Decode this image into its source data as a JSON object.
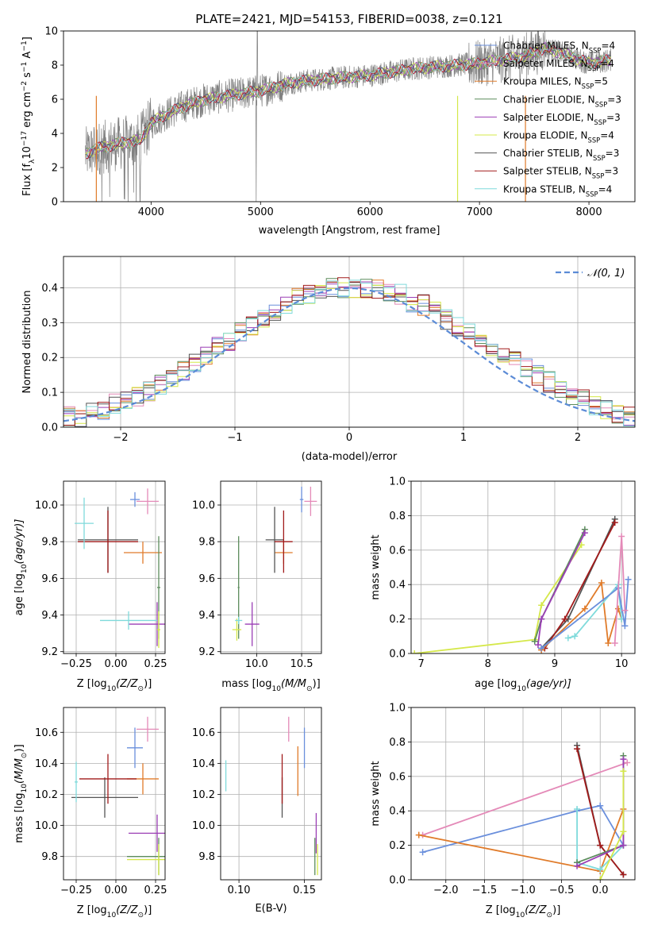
{
  "figure": {
    "title": "PLATE=2421, MJD=54153, FIBERID=0038, z=0.121"
  },
  "colors": {
    "Chabrier MILES": "#6a8fdc",
    "Salpeter MILES": "#e48ab8",
    "Kroupa MILES": "#e07b2a",
    "Chabrier ELODIE": "#5c8c5c",
    "Salpeter ELODIE": "#9b3fb5",
    "Kroupa ELODIE": "#d5e84a",
    "Chabrier STELIB": "#555555",
    "Salpeter STELIB": "#a11a1a",
    "Kroupa STELIB": "#7fdadb",
    "data": "#808080",
    "normal": "#5b8bd6"
  },
  "chart_data": [
    {
      "id": "spectrum",
      "type": "line",
      "xlabel": "wavelength [Angstrom, rest frame]",
      "ylabel_main": "Flux [f",
      "ylabel_sub": "λ",
      "ylabel_rest": "10",
      "ylabel_exp1": "−17",
      "ylabel_mid": " erg cm",
      "ylabel_exp2": "−2",
      "ylabel_mid2": " s",
      "ylabel_exp3": "−1",
      "ylabel_mid3": " A",
      "ylabel_exp4": "−1",
      "ylabel_end": "]",
      "xlim": [
        3200,
        8420
      ],
      "ylim": [
        0,
        10
      ],
      "xticks": [
        4000,
        5000,
        6000,
        7000,
        8000
      ],
      "yticks": [
        0,
        2,
        4,
        6,
        8,
        10
      ],
      "grid": false,
      "legend_position": "top-right",
      "continuum_x": [
        3400,
        3500,
        3700,
        3900,
        4000,
        4100,
        4300,
        4500,
        4700,
        5000,
        5300,
        5600,
        6000,
        6400,
        6800,
        7000,
        7200,
        7400,
        7600,
        7800,
        8000,
        8200
      ],
      "continuum_y": [
        2.8,
        3.1,
        3.4,
        3.6,
        4.6,
        5.0,
        5.6,
        6.0,
        6.2,
        6.5,
        7.0,
        7.2,
        7.4,
        7.8,
        8.0,
        8.1,
        8.3,
        8.5,
        9.0,
        8.6,
        8.1,
        8.3
      ],
      "legend": [
        {
          "name": "Chabrier MILES",
          "n": "4"
        },
        {
          "name": "Salpeter MILES",
          "n": "4"
        },
        {
          "name": "Kroupa MILES",
          "n": "5"
        },
        {
          "name": "Chabrier ELODIE",
          "n": "3"
        },
        {
          "name": "Salpeter ELODIE",
          "n": "3"
        },
        {
          "name": "Kroupa ELODIE",
          "n": "4"
        },
        {
          "name": "Chabrier STELIB",
          "n": "3"
        },
        {
          "name": "Salpeter STELIB",
          "n": "3"
        },
        {
          "name": "Kroupa STELIB",
          "n": "4"
        }
      ],
      "legend_n_prefix": ", N",
      "legend_n_sub": "SSP",
      "legend_n_eq": "="
    },
    {
      "id": "residuals",
      "type": "line",
      "xlabel": "(data-model)/error",
      "ylabel": "Normed distribution",
      "xlim": [
        -2.5,
        2.5
      ],
      "ylim": [
        0,
        0.49
      ],
      "xticks": [
        -2,
        -1,
        0,
        1,
        2
      ],
      "xticklabels": [
        "−2",
        "−1",
        "0",
        "1",
        "2"
      ],
      "yticks": [
        0.0,
        0.1,
        0.2,
        0.3,
        0.4
      ],
      "yticklabels": [
        "0.0",
        "0.1",
        "0.2",
        "0.3",
        "0.4"
      ],
      "grid": true,
      "legend_label": "𝒩(0, 1)",
      "legend_position": "top-right",
      "bin_width": 0.1,
      "bin_start": -2.5,
      "hist_base": [
        0.03,
        0.03,
        0.04,
        0.05,
        0.07,
        0.08,
        0.09,
        0.1,
        0.12,
        0.14,
        0.16,
        0.18,
        0.21,
        0.23,
        0.25,
        0.27,
        0.29,
        0.31,
        0.33,
        0.35,
        0.37,
        0.38,
        0.39,
        0.4,
        0.4,
        0.4,
        0.4,
        0.4,
        0.39,
        0.38,
        0.36,
        0.35,
        0.33,
        0.31,
        0.29,
        0.27,
        0.25,
        0.23,
        0.21,
        0.19,
        0.17,
        0.15,
        0.13,
        0.11,
        0.09,
        0.08,
        0.06,
        0.05,
        0.04,
        0.03
      ]
    },
    {
      "id": "age_vs_Z",
      "type": "scatter",
      "xlabel": "Z [log",
      "xlabel_sub": "10",
      "xlabel_rest": "(Z/Z",
      "xlabel_sub2": "⊙",
      "xlabel_end": ")]",
      "ylabel": "age  [log",
      "ylabel_sub": "10",
      "ylabel_rest": "(age/yr)]",
      "xlim": [
        -0.33,
        0.31
      ],
      "ylim": [
        9.19,
        10.13
      ],
      "xticks": [
        -0.25,
        0.0,
        0.25
      ],
      "xticklabels": [
        "−0.25",
        "0.00",
        "0.25"
      ],
      "yticks": [
        9.2,
        9.4,
        9.6,
        9.8,
        10.0
      ],
      "yticklabels": [
        "9.2",
        "9.4",
        "9.6",
        "9.8",
        "10.0"
      ],
      "grid": true,
      "points": [
        {
          "model": "Chabrier MILES",
          "x": 0.12,
          "y": 10.03,
          "xerr": 0.03,
          "yerr": 0.04
        },
        {
          "model": "Salpeter MILES",
          "x": 0.2,
          "y": 10.02,
          "xerr": 0.07,
          "yerr": 0.07
        },
        {
          "model": "Kroupa MILES",
          "x": 0.17,
          "y": 9.74,
          "xerr": 0.12,
          "yerr": 0.06
        },
        {
          "model": "Chabrier ELODIE",
          "x": 0.27,
          "y": 9.55,
          "xerr": 0.01,
          "yerr": 0.28
        },
        {
          "model": "Salpeter ELODIE",
          "x": 0.26,
          "y": 9.35,
          "xerr": 0.18,
          "yerr": 0.12
        },
        {
          "model": "Kroupa ELODIE",
          "x": 0.27,
          "y": 9.32,
          "xerr": 0.01,
          "yerr": 0.1
        },
        {
          "model": "Chabrier STELIB",
          "x": -0.05,
          "y": 9.81,
          "xerr": 0.19,
          "yerr": 0.18
        },
        {
          "model": "Salpeter STELIB",
          "x": -0.05,
          "y": 9.8,
          "xerr": 0.19,
          "yerr": 0.17
        },
        {
          "model": "Kroupa STELIB",
          "x": -0.2,
          "y": 9.9,
          "xerr": 0.06,
          "yerr": 0.14
        },
        {
          "model": "Kroupa STELIB",
          "x": 0.08,
          "y": 9.37,
          "xerr": 0.18,
          "yerr": 0.05
        }
      ]
    },
    {
      "id": "age_vs_mass",
      "type": "scatter",
      "xlabel": "mass [log",
      "xlabel_sub": "10",
      "xlabel_rest": "(M/M",
      "xlabel_sub2": "⊙",
      "xlabel_end": ")]",
      "xlim": [
        9.6,
        10.72
      ],
      "ylim": [
        9.19,
        10.13
      ],
      "xticks": [
        10.0,
        10.5
      ],
      "xticklabels": [
        "10.0",
        "10.5"
      ],
      "yticks": [
        9.2,
        9.4,
        9.6,
        9.8,
        10.0
      ],
      "yticklabels": [
        "9.2",
        "9.4",
        "9.6",
        "9.8",
        "10.0"
      ],
      "grid": true,
      "points": [
        {
          "model": "Chabrier MILES",
          "x": 10.5,
          "y": 10.03,
          "xerr": 0.02,
          "yerr": 0.07
        },
        {
          "model": "Salpeter MILES",
          "x": 10.6,
          "y": 10.02,
          "xerr": 0.07,
          "yerr": 0.08
        },
        {
          "model": "Kroupa MILES",
          "x": 10.3,
          "y": 9.74,
          "xerr": 0.1,
          "yerr": 0.06
        },
        {
          "model": "Chabrier ELODIE",
          "x": 9.8,
          "y": 9.55,
          "xerr": 0.01,
          "yerr": 0.28
        },
        {
          "model": "Salpeter ELODIE",
          "x": 9.95,
          "y": 9.35,
          "xerr": 0.08,
          "yerr": 0.12
        },
        {
          "model": "Kroupa ELODIE",
          "x": 9.78,
          "y": 9.32,
          "xerr": 0.05,
          "yerr": 0.06
        },
        {
          "model": "Chabrier STELIB",
          "x": 10.2,
          "y": 9.81,
          "xerr": 0.1,
          "yerr": 0.18
        },
        {
          "model": "Salpeter STELIB",
          "x": 10.3,
          "y": 9.8,
          "xerr": 0.1,
          "yerr": 0.17
        },
        {
          "model": "Kroupa STELIB",
          "x": 9.8,
          "y": 9.37,
          "xerr": 0.04,
          "yerr": 0.02
        }
      ]
    },
    {
      "id": "weight_vs_age",
      "type": "line",
      "xlabel": "age  [log",
      "xlabel_sub": "10",
      "xlabel_rest": "(age/yr)]",
      "ylabel": "mass weight",
      "xlim": [
        6.85,
        10.2
      ],
      "ylim": [
        0,
        1.0
      ],
      "xticks": [
        7,
        8,
        9,
        10
      ],
      "xticklabels": [
        "7",
        "8",
        "9",
        "10"
      ],
      "yticks": [
        0.0,
        0.2,
        0.4,
        0.6,
        0.8,
        1.0
      ],
      "yticklabels": [
        "0.0",
        "0.2",
        "0.4",
        "0.6",
        "0.8",
        "1.0"
      ],
      "grid": true,
      "series": [
        {
          "model": "Kroupa ELODIE",
          "x": [
            6.9,
            8.7,
            8.8,
            9.4
          ],
          "y": [
            0.0,
            0.08,
            0.28,
            0.63
          ]
        },
        {
          "model": "Chabrier ELODIE",
          "x": [
            8.7,
            8.8,
            9.45
          ],
          "y": [
            0.07,
            0.2,
            0.72
          ]
        },
        {
          "model": "Salpeter ELODIE",
          "x": [
            8.75,
            8.8,
            9.45
          ],
          "y": [
            0.05,
            0.2,
            0.7
          ]
        },
        {
          "model": "Chabrier STELIB",
          "x": [
            8.8,
            9.2,
            9.9
          ],
          "y": [
            0.03,
            0.2,
            0.78
          ]
        },
        {
          "model": "Salpeter STELIB",
          "x": [
            8.85,
            9.15,
            9.9
          ],
          "y": [
            0.03,
            0.2,
            0.76
          ]
        },
        {
          "model": "Kroupa MILES",
          "x": [
            8.8,
            9.45,
            9.7,
            9.8,
            9.95,
            10.0
          ],
          "y": [
            0.02,
            0.26,
            0.41,
            0.06,
            0.26,
            0.2
          ]
        },
        {
          "model": "Kroupa STELIB",
          "x": [
            9.2,
            9.3,
            9.95,
            10.0
          ],
          "y": [
            0.09,
            0.1,
            0.4,
            0.2
          ]
        },
        {
          "model": "Chabrier MILES",
          "x": [
            8.8,
            9.95,
            10.05,
            10.1
          ],
          "y": [
            0.03,
            0.38,
            0.16,
            0.43
          ]
        },
        {
          "model": "Salpeter MILES",
          "x": [
            9.9,
            10.0,
            10.05
          ],
          "y": [
            0.06,
            0.68,
            0.25
          ]
        }
      ]
    },
    {
      "id": "mass_vs_Z",
      "type": "scatter",
      "xlabel": "Z [log",
      "xlabel_sub": "10",
      "xlabel_rest": "(Z/Z",
      "xlabel_sub2": "⊙",
      "xlabel_end": ")]",
      "ylabel": "mass [log",
      "ylabel_sub": "10",
      "ylabel_rest": "(M/M",
      "ylabel_sub2": "⊙",
      "ylabel_end": ")]",
      "xlim": [
        -0.33,
        0.31
      ],
      "ylim": [
        9.65,
        10.76
      ],
      "xticks": [
        -0.25,
        0.0,
        0.25
      ],
      "xticklabels": [
        "−0.25",
        "0.00",
        "0.25"
      ],
      "yticks": [
        9.8,
        10.0,
        10.2,
        10.4,
        10.6
      ],
      "yticklabels": [
        "9.8",
        "10.0",
        "10.2",
        "10.4",
        "10.6"
      ],
      "grid": true,
      "points": [
        {
          "model": "Chabrier MILES",
          "x": 0.12,
          "y": 10.5,
          "xerr": 0.05,
          "yerr": 0.13
        },
        {
          "model": "Salpeter MILES",
          "x": 0.2,
          "y": 10.62,
          "xerr": 0.07,
          "yerr": 0.08
        },
        {
          "model": "Kroupa MILES",
          "x": 0.17,
          "y": 10.3,
          "xerr": 0.1,
          "yerr": 0.1
        },
        {
          "model": "Chabrier ELODIE",
          "x": 0.27,
          "y": 9.8,
          "xerr": 0.2,
          "yerr": 0.12
        },
        {
          "model": "Salpeter ELODIE",
          "x": 0.26,
          "y": 9.95,
          "xerr": 0.18,
          "yerr": 0.12
        },
        {
          "model": "Kroupa ELODIE",
          "x": 0.27,
          "y": 9.78,
          "xerr": 0.2,
          "yerr": 0.1
        },
        {
          "model": "Chabrier STELIB",
          "x": -0.07,
          "y": 10.18,
          "xerr": 0.21,
          "yerr": 0.13
        },
        {
          "model": "Salpeter STELIB",
          "x": -0.05,
          "y": 10.3,
          "xerr": 0.18,
          "yerr": 0.16
        },
        {
          "model": "Kroupa STELIB",
          "x": -0.25,
          "y": 10.28,
          "xerr": 0.01,
          "yerr": 0.13
        }
      ]
    },
    {
      "id": "mass_vs_ebv",
      "type": "scatter",
      "xlabel": "E(B-V)",
      "xlim": [
        0.086,
        0.163
      ],
      "ylim": [
        9.65,
        10.76
      ],
      "xticks": [
        0.1,
        0.15
      ],
      "xticklabels": [
        "0.10",
        "0.15"
      ],
      "yticks": [
        9.8,
        10.0,
        10.2,
        10.4,
        10.6
      ],
      "yticklabels": [
        "9.8",
        "10.0",
        "10.2",
        "10.4",
        "10.6"
      ],
      "grid": true,
      "points": [
        {
          "model": "Chabrier MILES",
          "x": 0.15,
          "y": 10.5,
          "xerr": 0,
          "yerr": 0.13
        },
        {
          "model": "Salpeter MILES",
          "x": 0.138,
          "y": 10.62,
          "xerr": 0,
          "yerr": 0.08
        },
        {
          "model": "Kroupa MILES",
          "x": 0.145,
          "y": 10.35,
          "xerr": 0,
          "yerr": 0.16
        },
        {
          "model": "Chabrier ELODIE",
          "x": 0.158,
          "y": 9.8,
          "xerr": 0,
          "yerr": 0.12
        },
        {
          "model": "Salpeter ELODIE",
          "x": 0.159,
          "y": 9.95,
          "xerr": 0,
          "yerr": 0.13
        },
        {
          "model": "Kroupa ELODIE",
          "x": 0.16,
          "y": 9.78,
          "xerr": 0,
          "yerr": 0.1
        },
        {
          "model": "Chabrier STELIB",
          "x": 0.133,
          "y": 10.18,
          "xerr": 0,
          "yerr": 0.13
        },
        {
          "model": "Salpeter STELIB",
          "x": 0.133,
          "y": 10.3,
          "xerr": 0,
          "yerr": 0.16
        },
        {
          "model": "Kroupa STELIB",
          "x": 0.09,
          "y": 10.32,
          "xerr": 0,
          "yerr": 0.1
        }
      ]
    },
    {
      "id": "weight_vs_Z",
      "type": "line",
      "xlabel": "Z [log",
      "xlabel_sub": "10",
      "xlabel_rest": "(Z/Z",
      "xlabel_sub2": "⊙",
      "xlabel_end": ")]",
      "ylabel": "mass weight",
      "xlim": [
        -2.45,
        0.45
      ],
      "ylim": [
        0,
        1.0
      ],
      "xticks": [
        -2.0,
        -1.5,
        -1.0,
        -0.5,
        0.0
      ],
      "xticklabels": [
        "−2.0",
        "−1.5",
        "−1.0",
        "−0.5",
        "0.0"
      ],
      "yticks": [
        0.0,
        0.2,
        0.4,
        0.6,
        0.8,
        1.0
      ],
      "yticklabels": [
        "0.0",
        "0.2",
        "0.4",
        "0.6",
        "0.8",
        "1.0"
      ],
      "grid": true,
      "series": [
        {
          "model": "Salpeter MILES",
          "x": [
            -2.3,
            0.35
          ],
          "y": [
            0.26,
            0.68
          ]
        },
        {
          "model": "Chabrier MILES",
          "x": [
            -2.3,
            -0.3,
            0.0,
            0.3
          ],
          "y": [
            0.16,
            0.4,
            0.43,
            0.2
          ]
        },
        {
          "model": "Kroupa MILES",
          "x": [
            -2.35,
            0.0,
            0.3
          ],
          "y": [
            0.26,
            0.05,
            0.41
          ]
        },
        {
          "model": "Kroupa STELIB",
          "x": [
            -0.3,
            -0.3,
            0.0,
            0.3
          ],
          "y": [
            0.41,
            0.1,
            0.06,
            0.2
          ]
        },
        {
          "model": "Chabrier STELIB",
          "x": [
            -0.3,
            0.0,
            0.3
          ],
          "y": [
            0.78,
            0.2,
            0.03
          ]
        },
        {
          "model": "Salpeter STELIB",
          "x": [
            -0.3,
            0.0,
            0.3
          ],
          "y": [
            0.76,
            0.2,
            0.03
          ]
        },
        {
          "model": "Chabrier ELODIE",
          "x": [
            -0.3,
            0.3,
            0.3
          ],
          "y": [
            0.1,
            0.2,
            0.72
          ]
        },
        {
          "model": "Salpeter ELODIE",
          "x": [
            -0.3,
            0.3,
            0.3
          ],
          "y": [
            0.08,
            0.2,
            0.7
          ]
        },
        {
          "model": "Kroupa ELODIE",
          "x": [
            0.0,
            0.3,
            0.3
          ],
          "y": [
            0.0,
            0.28,
            0.63
          ]
        }
      ]
    }
  ]
}
